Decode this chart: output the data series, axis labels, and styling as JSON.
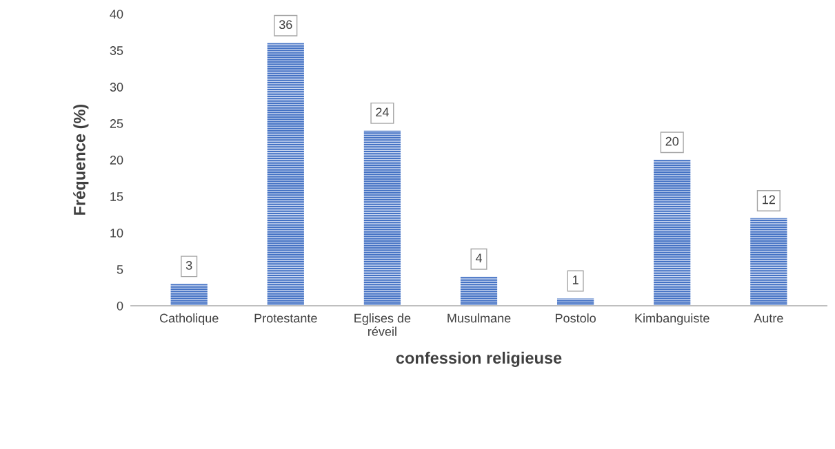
{
  "chart_data": {
    "type": "bar",
    "xlabel": "confession religieuse",
    "ylabel": "Fréquence (%)",
    "categories": [
      "Catholique",
      "Protestante",
      "Eglises de\nréveil",
      "Musulmane",
      "Postolo",
      "Kimbanguiste",
      "Autre"
    ],
    "values": [
      3,
      36,
      24,
      4,
      1,
      20,
      12
    ],
    "color": "#4472c4",
    "ylim": [
      0,
      40
    ],
    "yticks": [
      0,
      5,
      10,
      15,
      20,
      25,
      30,
      35,
      40
    ],
    "grid": false,
    "data_labels": true
  }
}
